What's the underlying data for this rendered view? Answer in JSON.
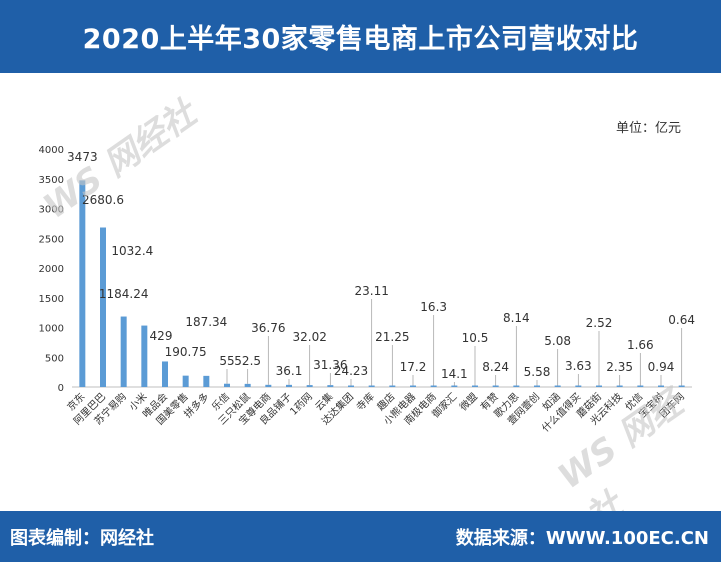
{
  "title": "2020上半年30家零售电商上市公司营收对比",
  "unit_label": "单位：亿元",
  "watermark": "WS 网经社",
  "footer": {
    "left": "图表编制：网经社",
    "right": "数据来源：WWW.100EC.CN"
  },
  "colors": {
    "header_bg": "#1f5fa8",
    "bar": "#5b9bd5",
    "axis": "#bfbfbf",
    "text": "#333333"
  },
  "chart_data": {
    "type": "bar",
    "title": "2020上半年30家零售电商上市公司营收对比",
    "xlabel": "",
    "ylabel": "",
    "ylim": [
      0,
      4000
    ],
    "yticks": [
      0,
      500,
      1000,
      1500,
      2000,
      2500,
      3000,
      3500,
      4000
    ],
    "grid": false,
    "categories": [
      "京东",
      "阿里巴巴",
      "苏宁易购",
      "小米",
      "唯品会",
      "国美零售",
      "拼多多",
      "乐信",
      "三只松鼠",
      "宝尊电商",
      "良品铺子",
      "1药网",
      "云集",
      "达达集团",
      "寺库",
      "趣店",
      "小熊电器",
      "南极电商",
      "御家汇",
      "微盟",
      "有赞",
      "歌力思",
      "壹网壹创",
      "如涵",
      "什么值得买",
      "蘑菇街",
      "光云科技",
      "优信",
      "宝宝树",
      "团车网"
    ],
    "values": [
      3473,
      2680.6,
      1184.24,
      1032.4,
      429,
      190.75,
      187.34,
      55,
      52.5,
      36.76,
      36.1,
      32.02,
      31.36,
      24.23,
      23.11,
      21.25,
      17.2,
      16.3,
      14.1,
      10.5,
      8.24,
      8.14,
      5.58,
      5.08,
      3.63,
      2.52,
      2.35,
      1.66,
      0.94,
      0.64
    ],
    "data_labels": [
      "3473",
      "2680.6",
      "1184.24",
      "1032.4",
      "429",
      "190.75",
      "187.34",
      "55",
      "52.5",
      "36.76",
      "36.1",
      "32.02",
      "31.36",
      "24.23",
      "23.11",
      "21.25",
      "17.2",
      "16.3",
      "14.1",
      "10.5",
      "8.24",
      "8.14",
      "5.58",
      "5.08",
      "3.63",
      "2.52",
      "2.35",
      "1.66",
      "0.94",
      "0.64"
    ]
  }
}
